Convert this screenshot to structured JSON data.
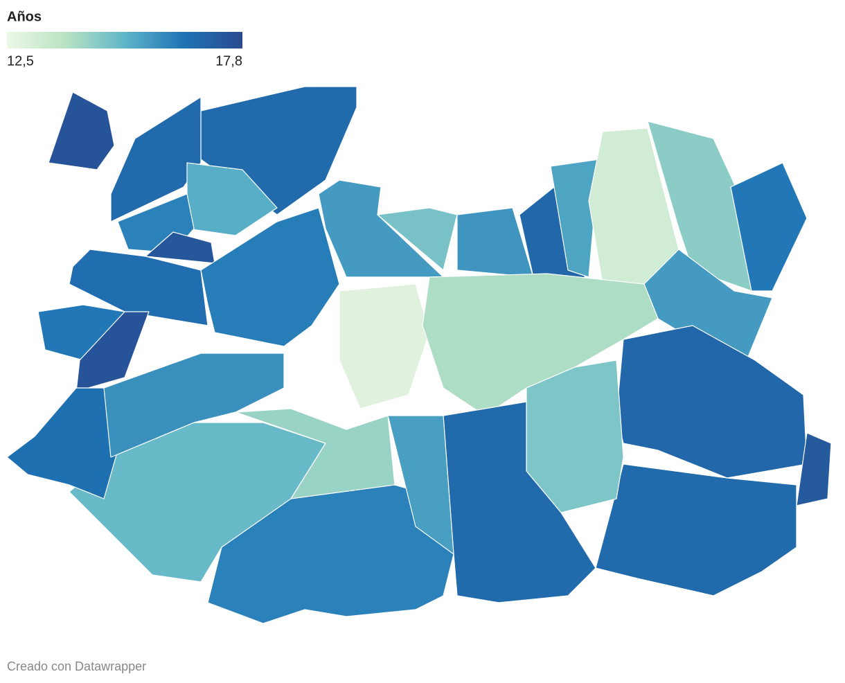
{
  "legend": {
    "title": "Años",
    "min": {
      "value": 12.5,
      "label": "12,5"
    },
    "max": {
      "value": 17.8,
      "label": "17,8"
    },
    "colors": [
      "#ecf7e6",
      "#b9e3c4",
      "#5fb5c8",
      "#1e74b5",
      "#2a4a8f"
    ]
  },
  "regions": {
    "values": [
      17.5,
      16.8,
      16.8,
      15.3,
      16.2,
      17.4,
      16.7,
      16.4,
      17.5,
      16.3,
      15.7,
      14.8,
      12.8,
      15.8,
      16.9,
      15.5,
      13.2,
      14.5,
      16.4,
      15.7,
      14.0,
      16.9,
      17.3,
      16.8,
      14.7,
      16.8,
      15.0,
      14.3,
      16.2,
      15.6,
      16.6,
      15.9
    ]
  },
  "footer": "Creado con Datawrapper"
}
